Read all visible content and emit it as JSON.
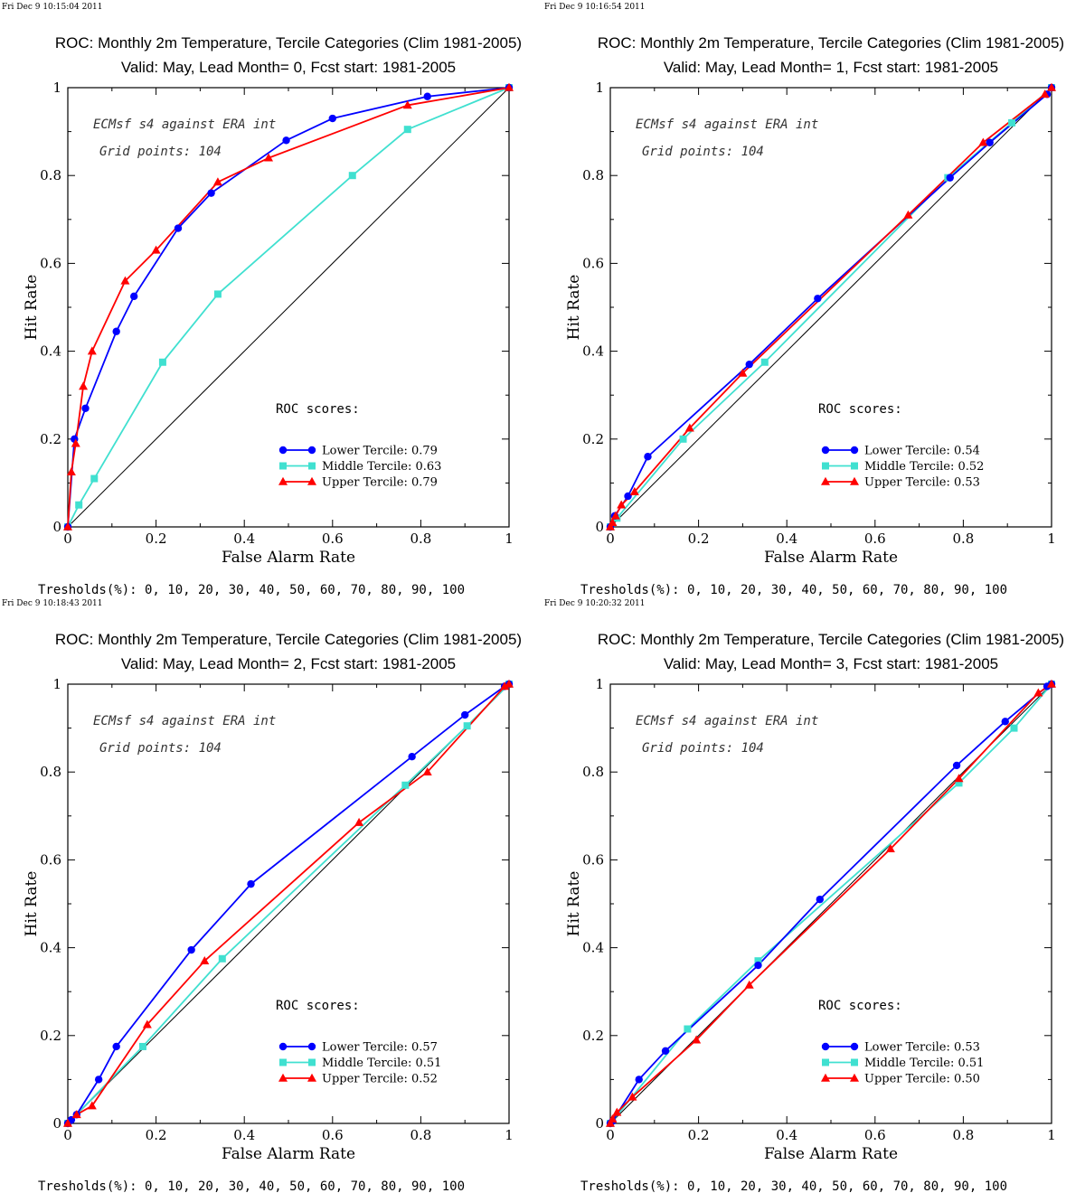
{
  "colors": {
    "lower": "#0000ff",
    "middle": "#40e0d0",
    "upper": "#ff0000",
    "diagonal": "#000000"
  },
  "chart_data": [
    {
      "type": "line",
      "timestamp": "Fri Dec  9 10:15:04 2011",
      "title": "ROC: Monthly 2m Temperature, Tercile Categories (Clim 1981-2005)",
      "subtitle": "Valid: May, Lead Month= 0, Fcst start: 1981-2005",
      "xlabel": "False Alarm Rate",
      "ylabel": "Hit Rate",
      "xlim": [
        0,
        1
      ],
      "ylim": [
        0,
        1
      ],
      "xticks": [
        "0",
        "0.2",
        "0.4",
        "0.6",
        "0.8",
        "1"
      ],
      "yticks": [
        "0",
        "0.2",
        "0.4",
        "0.6",
        "0.8",
        "1"
      ],
      "annotations": [
        "ECMsf s4 against ERA int",
        "Grid points:  104"
      ],
      "legend_title": "ROC scores:",
      "legend_placement": "lower-right",
      "footer": "Tresholds(%): 0, 10, 20, 30, 40, 50, 60, 70, 80, 90, 100",
      "series": [
        {
          "name": "Lower Tercile: 0.79",
          "marker": "circle",
          "x": [
            0,
            0.015,
            0.04,
            0.11,
            0.15,
            0.25,
            0.325,
            0.495,
            0.6,
            0.815,
            1
          ],
          "y": [
            0,
            0.2,
            0.27,
            0.445,
            0.525,
            0.68,
            0.76,
            0.88,
            0.93,
            0.98,
            1
          ]
        },
        {
          "name": "Middle Tercile: 0.63",
          "marker": "square",
          "x": [
            0,
            0.025,
            0.06,
            0.215,
            0.34,
            0.645,
            0.77,
            1
          ],
          "y": [
            0,
            0.05,
            0.11,
            0.375,
            0.53,
            0.8,
            0.905,
            1
          ]
        },
        {
          "name": "Upper Tercile: 0.79",
          "marker": "triangle",
          "x": [
            0,
            0.008,
            0.018,
            0.035,
            0.055,
            0.13,
            0.2,
            0.34,
            0.455,
            0.77,
            1
          ],
          "y": [
            0,
            0.125,
            0.19,
            0.32,
            0.4,
            0.56,
            0.63,
            0.785,
            0.84,
            0.96,
            1
          ]
        }
      ]
    },
    {
      "type": "line",
      "timestamp": "Fri Dec  9 10:16:54 2011",
      "title": "ROC: Monthly 2m Temperature, Tercile Categories (Clim 1981-2005)",
      "subtitle": "Valid: May, Lead Month= 1, Fcst start: 1981-2005",
      "xlabel": "False Alarm Rate",
      "ylabel": "Hit Rate",
      "xlim": [
        0,
        1
      ],
      "ylim": [
        0,
        1
      ],
      "xticks": [
        "0",
        "0.2",
        "0.4",
        "0.6",
        "0.8",
        "1"
      ],
      "yticks": [
        "0",
        "0.2",
        "0.4",
        "0.6",
        "0.8",
        "1"
      ],
      "annotations": [
        "ECMsf s4 against ERA int",
        "Grid points:  104"
      ],
      "legend_title": "ROC scores:",
      "legend_placement": "lower-right",
      "footer": "Tresholds(%): 0, 10, 20, 30, 40, 50, 60, 70, 80, 90, 100",
      "series": [
        {
          "name": "Lower Tercile: 0.54",
          "marker": "circle",
          "x": [
            0,
            0.01,
            0.04,
            0.085,
            0.315,
            0.47,
            0.77,
            0.86,
            0.99,
            1
          ],
          "y": [
            0,
            0.025,
            0.07,
            0.16,
            0.37,
            0.52,
            0.795,
            0.875,
            0.985,
            1
          ]
        },
        {
          "name": "Middle Tercile: 0.52",
          "marker": "square",
          "x": [
            0,
            0.015,
            0.165,
            0.35,
            0.765,
            0.91,
            1
          ],
          "y": [
            0,
            0.02,
            0.2,
            0.375,
            0.795,
            0.92,
            1
          ]
        },
        {
          "name": "Upper Tercile: 0.53",
          "marker": "triangle",
          "x": [
            0,
            0.005,
            0.012,
            0.025,
            0.055,
            0.18,
            0.3,
            0.675,
            0.845,
            0.985,
            1
          ],
          "y": [
            0,
            0.01,
            0.025,
            0.05,
            0.08,
            0.225,
            0.35,
            0.71,
            0.875,
            0.985,
            1
          ]
        }
      ]
    },
    {
      "type": "line",
      "timestamp": "Fri Dec  9 10:18:43 2011",
      "title": "ROC: Monthly 2m Temperature, Tercile Categories (Clim 1981-2005)",
      "subtitle": "Valid: May, Lead Month= 2, Fcst start: 1981-2005",
      "xlabel": "False Alarm Rate",
      "ylabel": "Hit Rate",
      "xlim": [
        0,
        1
      ],
      "ylim": [
        0,
        1
      ],
      "xticks": [
        "0",
        "0.2",
        "0.4",
        "0.6",
        "0.8",
        "1"
      ],
      "yticks": [
        "0",
        "0.2",
        "0.4",
        "0.6",
        "0.8",
        "1"
      ],
      "annotations": [
        "ECMsf s4 against ERA int",
        "Grid points:  104"
      ],
      "legend_title": "ROC scores:",
      "legend_placement": "lower-right",
      "footer": "Tresholds(%): 0, 10, 20, 30, 40, 50, 60, 70, 80, 90, 100",
      "series": [
        {
          "name": "Lower Tercile: 0.57",
          "marker": "circle",
          "x": [
            0,
            0.008,
            0.02,
            0.07,
            0.11,
            0.28,
            0.415,
            0.78,
            0.9,
            0.99,
            1
          ],
          "y": [
            0,
            0.008,
            0.02,
            0.1,
            0.175,
            0.395,
            0.545,
            0.835,
            0.93,
            0.995,
            1
          ]
        },
        {
          "name": "Middle Tercile: 0.51",
          "marker": "square",
          "x": [
            0,
            0.17,
            0.35,
            0.765,
            0.905,
            1
          ],
          "y": [
            0,
            0.175,
            0.375,
            0.77,
            0.905,
            1
          ]
        },
        {
          "name": "Upper Tercile: 0.52",
          "marker": "triangle",
          "x": [
            0,
            0.02,
            0.055,
            0.18,
            0.31,
            0.66,
            0.815,
            0.99,
            1
          ],
          "y": [
            0,
            0.02,
            0.04,
            0.225,
            0.37,
            0.685,
            0.8,
            0.995,
            1
          ]
        }
      ]
    },
    {
      "type": "line",
      "timestamp": "Fri Dec  9 10:20:32 2011",
      "title": "ROC: Monthly 2m Temperature, Tercile Categories (Clim 1981-2005)",
      "subtitle": "Valid: May, Lead Month= 3, Fcst start: 1981-2005",
      "xlabel": "False Alarm Rate",
      "ylabel": "Hit Rate",
      "xlim": [
        0,
        1
      ],
      "ylim": [
        0,
        1
      ],
      "xticks": [
        "0",
        "0.2",
        "0.4",
        "0.6",
        "0.8",
        "1"
      ],
      "yticks": [
        "0",
        "0.2",
        "0.4",
        "0.6",
        "0.8",
        "1"
      ],
      "annotations": [
        "ECMsf s4 against ERA int",
        "Grid points:  104"
      ],
      "legend_title": "ROC scores:",
      "legend_placement": "lower-right",
      "footer": "Tresholds(%): 0, 10, 20, 30, 40, 50, 60, 70, 80, 90, 100",
      "series": [
        {
          "name": "Lower Tercile: 0.53",
          "marker": "circle",
          "x": [
            0,
            0.005,
            0.065,
            0.125,
            0.335,
            0.475,
            0.785,
            0.895,
            0.99,
            1
          ],
          "y": [
            0,
            0.005,
            0.1,
            0.165,
            0.36,
            0.51,
            0.815,
            0.915,
            0.995,
            1
          ]
        },
        {
          "name": "Middle Tercile: 0.51",
          "marker": "square",
          "x": [
            0,
            0.175,
            0.335,
            0.79,
            0.915,
            1
          ],
          "y": [
            0,
            0.215,
            0.37,
            0.775,
            0.9,
            1
          ]
        },
        {
          "name": "Upper Tercile: 0.50",
          "marker": "triangle",
          "x": [
            0,
            0.005,
            0.015,
            0.05,
            0.195,
            0.315,
            0.635,
            0.79,
            0.97,
            1
          ],
          "y": [
            0,
            0.01,
            0.025,
            0.06,
            0.19,
            0.315,
            0.625,
            0.785,
            0.98,
            1
          ]
        }
      ]
    }
  ]
}
